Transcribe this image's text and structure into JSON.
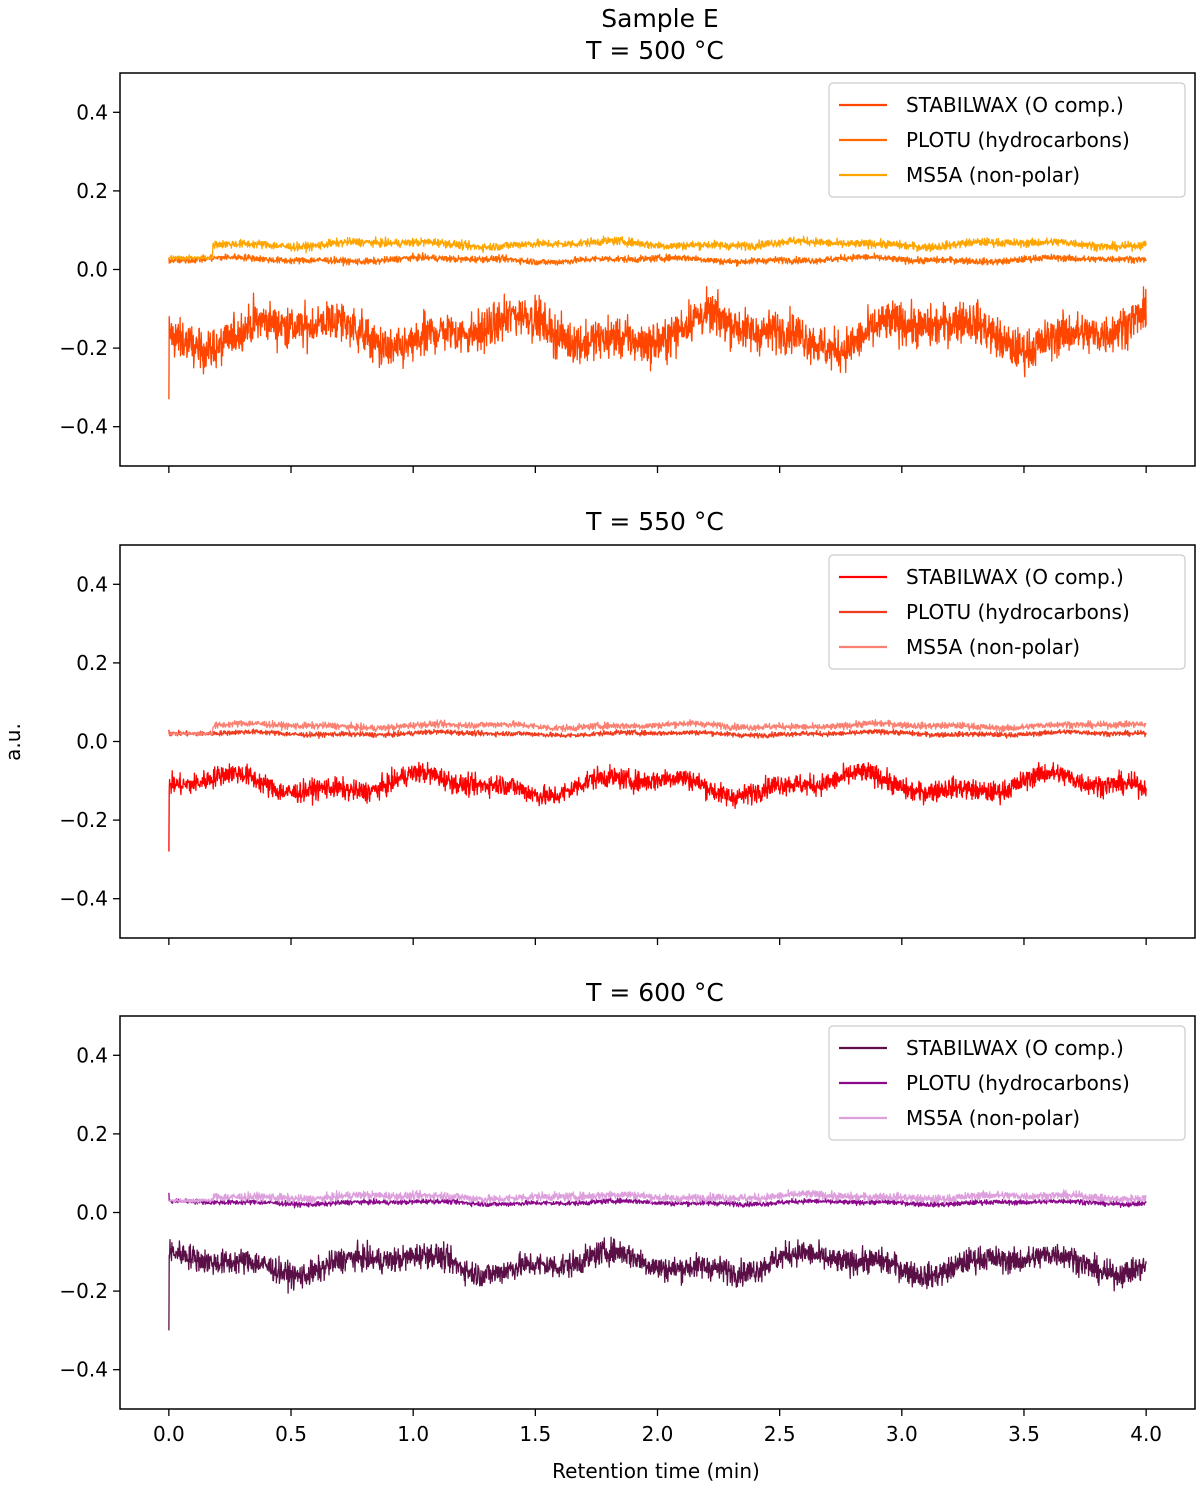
{
  "chart_data": {
    "figure_title": "Sample E",
    "xlabel": "Retention time (min)",
    "ylabel": "a.u.",
    "xlim": [
      -0.2,
      4.2
    ],
    "ylim": [
      -0.5,
      0.5
    ],
    "x_ticks": [
      0.0,
      0.5,
      1.0,
      1.5,
      2.0,
      2.5,
      3.0,
      3.5,
      4.0
    ],
    "x_tick_labels": [
      "0.0",
      "0.5",
      "1.0",
      "1.5",
      "2.0",
      "2.5",
      "3.0",
      "3.5",
      "4.0"
    ],
    "y_ticks": [
      0.4,
      0.2,
      0.0,
      -0.2,
      -0.4
    ],
    "y_tick_labels": [
      "0.4",
      "0.2",
      "0.0",
      "−0.2",
      "−0.4"
    ],
    "grid": false,
    "legend_location": "top-right",
    "panels": [
      {
        "type": "line",
        "title": "T = 500 °C",
        "series": [
          {
            "name": "STABILWAX (O comp.)",
            "color": "#ff4500",
            "baseline": -0.16,
            "noise": 0.05,
            "wave": 0.03,
            "start_value": -0.33,
            "x_range": [
              0.0,
              4.0
            ]
          },
          {
            "name": "PLOTU (hydrocarbons)",
            "color": "#ff6a00",
            "baseline": 0.025,
            "noise": 0.008,
            "wave": 0.004,
            "start_value": 0.03,
            "x_range": [
              0.0,
              4.0
            ]
          },
          {
            "name": "MS5A (non-polar)",
            "color": "#ffa500",
            "baseline": 0.065,
            "noise": 0.01,
            "wave": 0.005,
            "start_value": 0.03,
            "x_range": [
              0.0,
              4.0
            ]
          }
        ]
      },
      {
        "type": "line",
        "title": "T = 550 °C",
        "series": [
          {
            "name": "STABILWAX (O comp.)",
            "color": "#ff0000",
            "baseline": -0.11,
            "noise": 0.025,
            "wave": 0.02,
            "start_value": -0.28,
            "x_range": [
              0.0,
              4.0
            ]
          },
          {
            "name": "PLOTU (hydrocarbons)",
            "color": "#f03c1e",
            "baseline": 0.02,
            "noise": 0.006,
            "wave": 0.003,
            "start_value": 0.03,
            "x_range": [
              0.0,
              4.0
            ]
          },
          {
            "name": "MS5A (non-polar)",
            "color": "#fa8072",
            "baseline": 0.04,
            "noise": 0.008,
            "wave": 0.004,
            "start_value": 0.02,
            "x_range": [
              0.0,
              4.0
            ]
          }
        ]
      },
      {
        "type": "line",
        "title": "T = 600 °C",
        "series": [
          {
            "name": "STABILWAX (O comp.)",
            "color": "#5a0f46",
            "baseline": -0.13,
            "noise": 0.03,
            "wave": 0.02,
            "start_value": -0.3,
            "x_range": [
              0.0,
              4.0
            ]
          },
          {
            "name": "PLOTU (hydrocarbons)",
            "color": "#8b0a8b",
            "baseline": 0.025,
            "noise": 0.006,
            "wave": 0.003,
            "start_value": 0.05,
            "x_range": [
              0.0,
              4.0
            ]
          },
          {
            "name": "MS5A (non-polar)",
            "color": "#dda0dd",
            "baseline": 0.04,
            "noise": 0.01,
            "wave": 0.004,
            "start_value": 0.03,
            "x_range": [
              0.0,
              4.0
            ]
          }
        ]
      }
    ]
  }
}
